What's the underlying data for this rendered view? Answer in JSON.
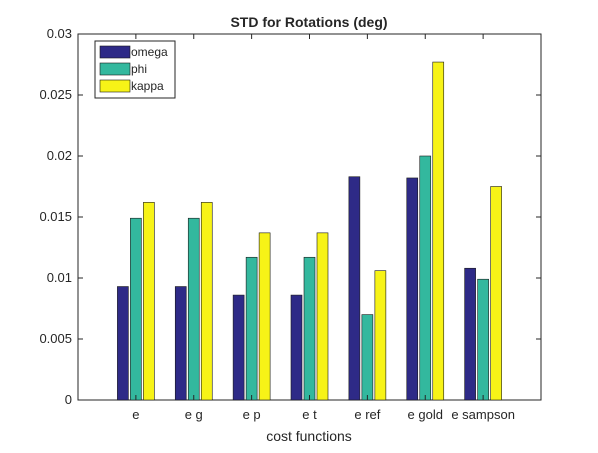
{
  "chart_data": {
    "type": "bar",
    "title": "STD for Rotations (deg)",
    "xlabel": "cost functions",
    "ylabel": "",
    "categories": [
      "e",
      "e g",
      "e p",
      "e t",
      "e ref",
      "e gold",
      "e sampson"
    ],
    "series": [
      {
        "name": "omega",
        "color": "#2e2a87",
        "values": [
          0.0093,
          0.0093,
          0.0086,
          0.0086,
          0.0183,
          0.0182,
          0.0108
        ]
      },
      {
        "name": "phi",
        "color": "#33b89e",
        "values": [
          0.0149,
          0.0149,
          0.0117,
          0.0117,
          0.007,
          0.02,
          0.0099
        ]
      },
      {
        "name": "kappa",
        "color": "#f7f317",
        "values": [
          0.0162,
          0.0162,
          0.0137,
          0.0137,
          0.0106,
          0.0277,
          0.0175
        ]
      }
    ],
    "ylim": [
      0,
      0.03
    ],
    "yticks": [
      "0",
      "0.005",
      "0.01",
      "0.015",
      "0.02",
      "0.025",
      "0.03"
    ],
    "grid": false,
    "legend_position": "top-left"
  }
}
